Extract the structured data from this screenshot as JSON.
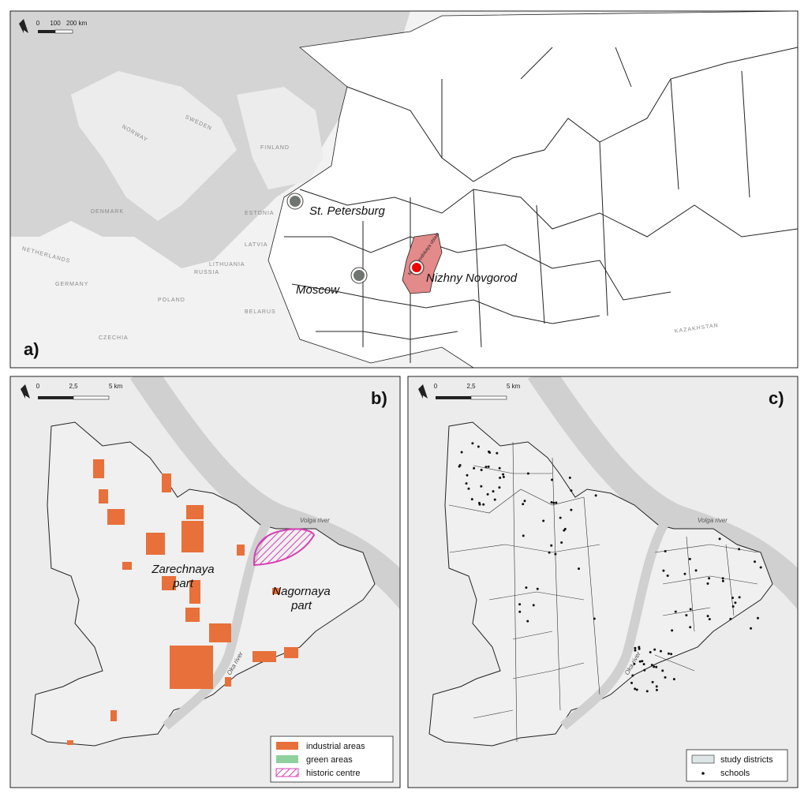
{
  "panel_a": {
    "label": "a)",
    "scale": [
      "0",
      "100",
      "200 km"
    ],
    "countries": [
      "NORWAY",
      "SWEDEN",
      "FINLAND",
      "ESTONIA",
      "LATVIA",
      "LITHUANIA",
      "RUSSIA",
      "DENMARK",
      "NETHERLANDS",
      "GERMANY",
      "POLAND",
      "BELARUS",
      "CZECHIA",
      "KAZAKHSTAN"
    ],
    "cities": [
      "St. Petersburg",
      "Moscow",
      "Nizhny Novgorod"
    ],
    "region": "Nizhegorodskaya oblast"
  },
  "panel_b": {
    "label": "b)",
    "scale": [
      "0",
      "2,5",
      "5 km"
    ],
    "zarechnaya": [
      "Zarechnaya",
      "part"
    ],
    "nagornaya": [
      "Nagornaya",
      "part"
    ],
    "rivers": [
      "Volga river",
      "Oka river"
    ],
    "legend": [
      "industrial areas",
      "green areas",
      "historic centre"
    ]
  },
  "panel_c": {
    "label": "c)",
    "scale": [
      "0",
      "2,5",
      "5 km"
    ],
    "rivers": [
      "Volga river",
      "Oka river"
    ],
    "legend": [
      "study districts",
      "schools"
    ]
  }
}
